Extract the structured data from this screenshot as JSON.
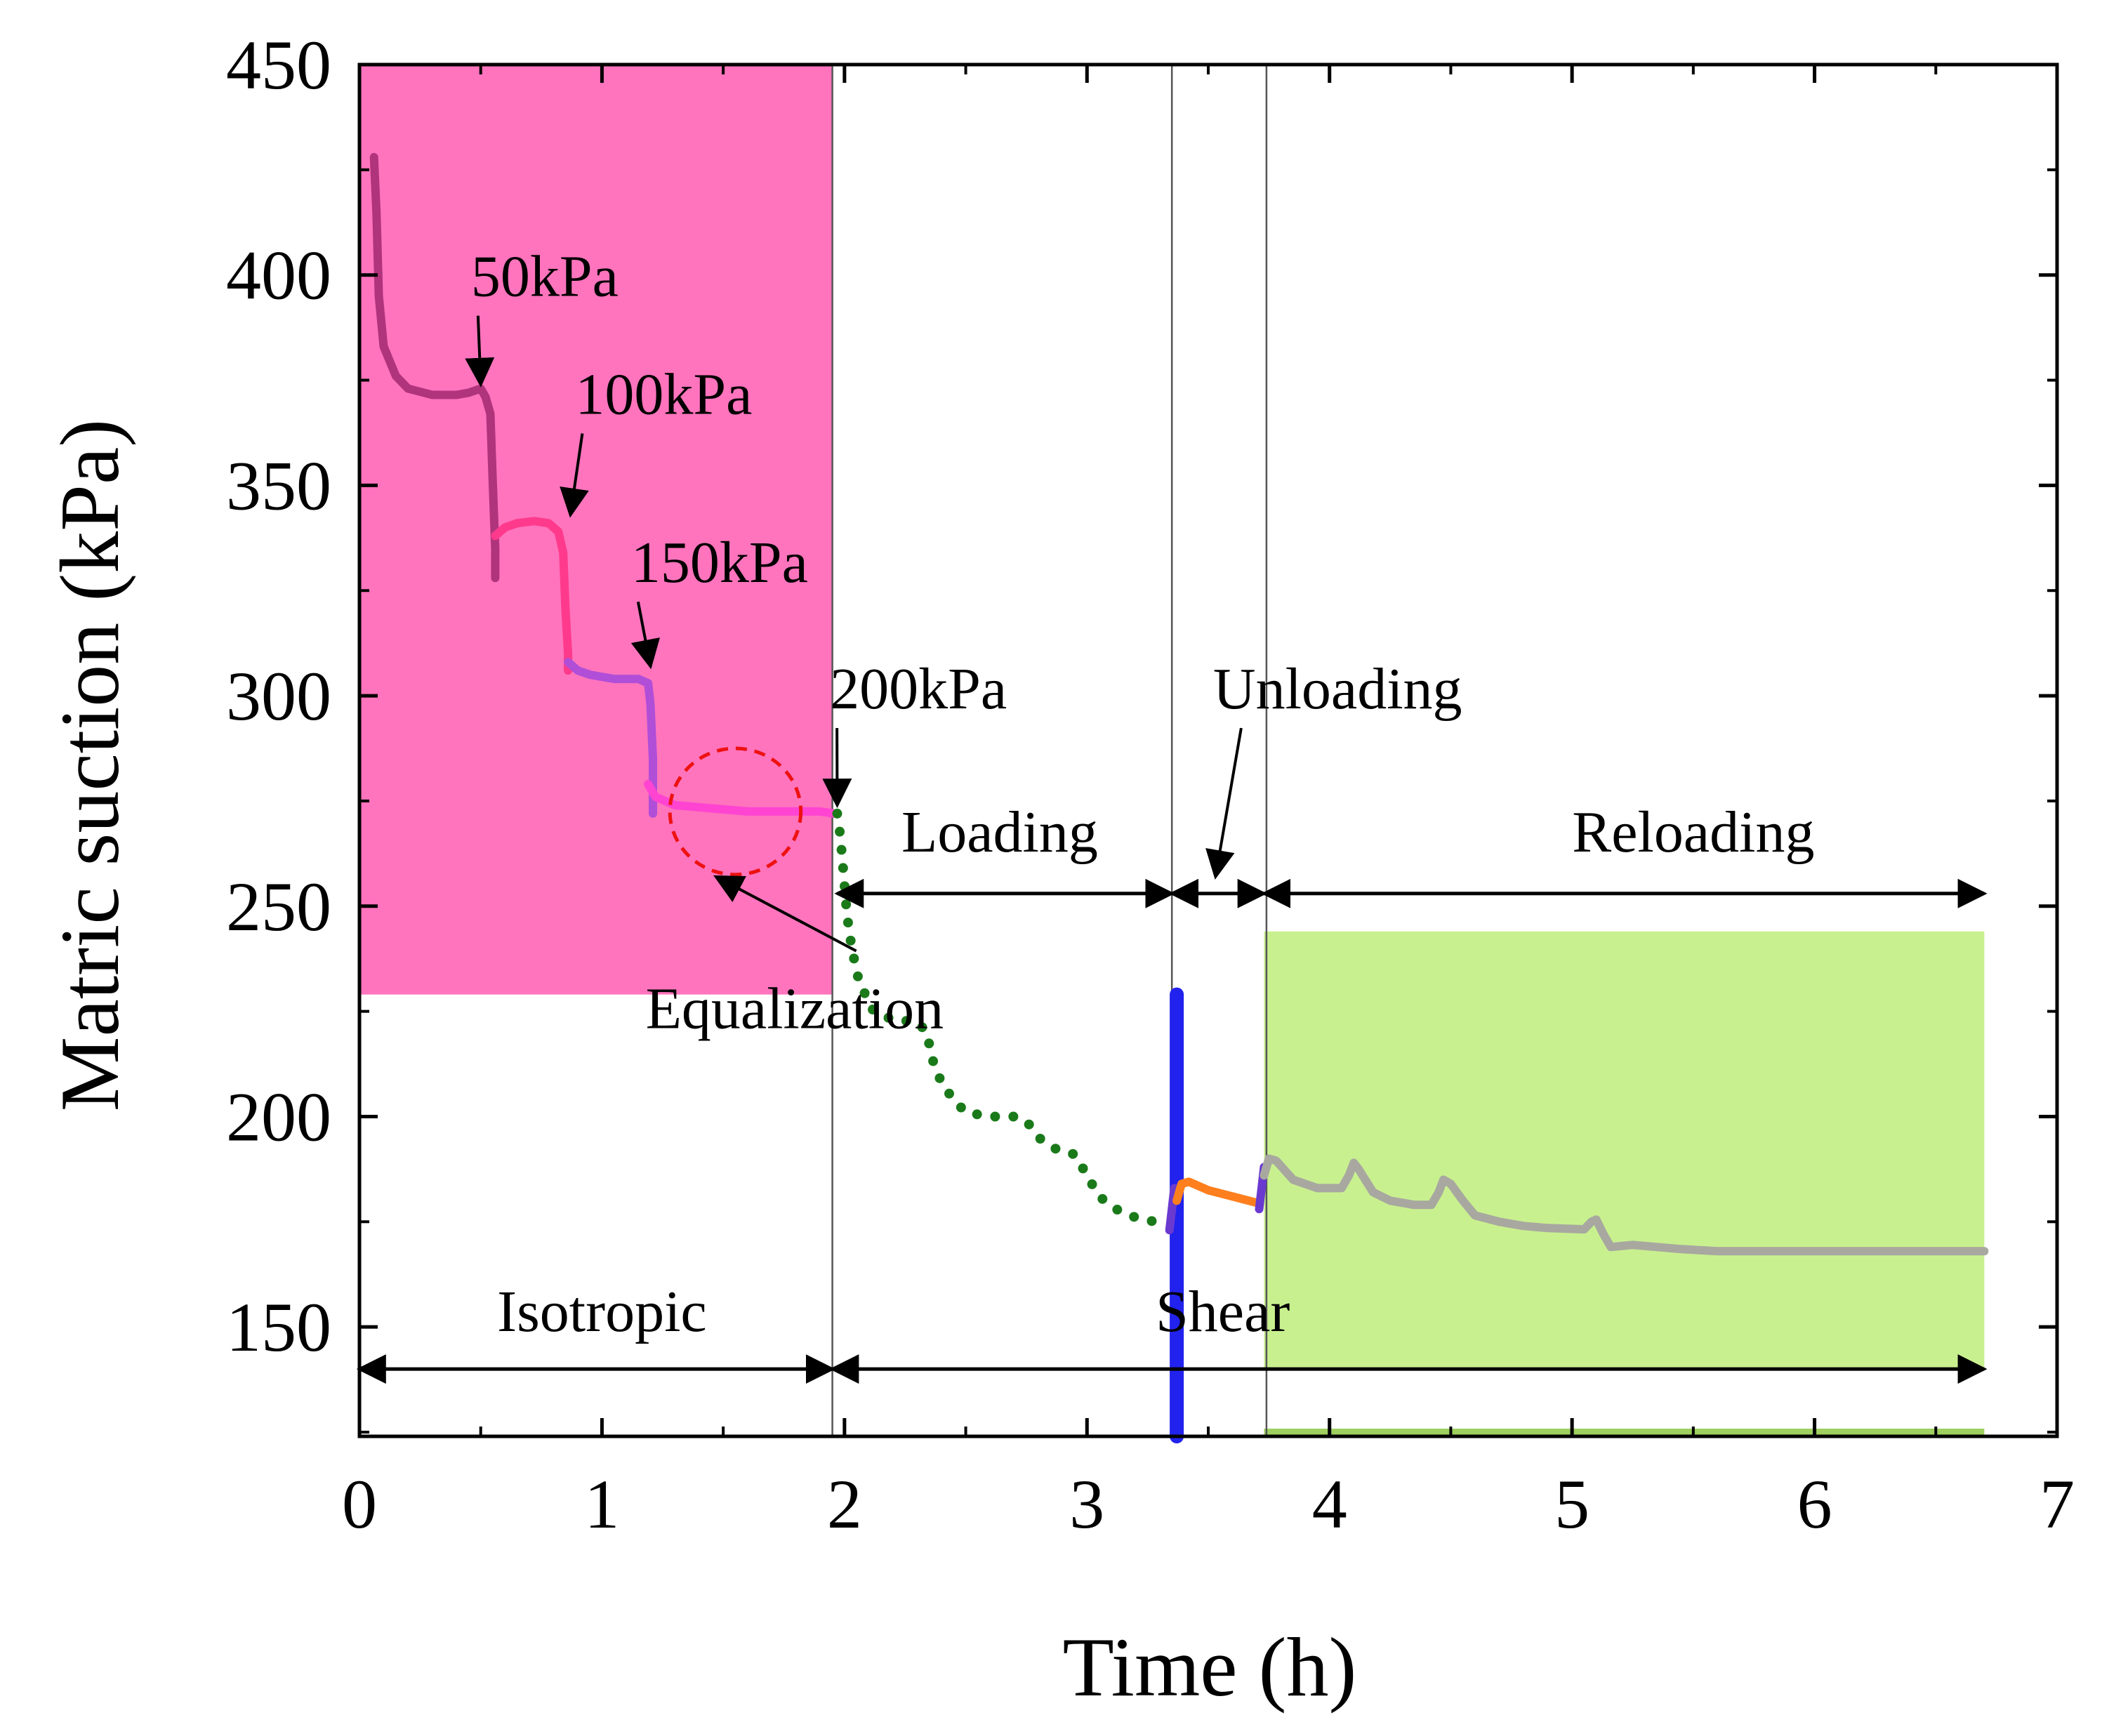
{
  "chart_data": {
    "type": "line",
    "xlabel": "Time (h)",
    "ylabel": "Matric suction (kPa)",
    "xlim": [
      0,
      7
    ],
    "ylim": [
      124,
      450
    ],
    "x_ticks": [
      0,
      1,
      2,
      3,
      4,
      5,
      6,
      7
    ],
    "y_ticks": [
      150,
      200,
      250,
      300,
      350,
      400,
      450
    ],
    "regions": [
      {
        "name": "isotropic-region",
        "x": [
          0.0,
          1.95
        ],
        "y": [
          229,
          450
        ],
        "color": "#ff74bd"
      },
      {
        "name": "reloading-region",
        "x": [
          3.73,
          6.7
        ],
        "y": [
          140,
          244
        ],
        "color": "#c9f08f"
      }
    ],
    "series": [
      {
        "name": "Confining 50kPa",
        "color": "#b0347c",
        "dashed": false,
        "points": [
          [
            0.06,
            428
          ],
          [
            0.07,
            415
          ],
          [
            0.08,
            395
          ],
          [
            0.1,
            383
          ],
          [
            0.15,
            376
          ],
          [
            0.2,
            373
          ],
          [
            0.3,
            371.5
          ],
          [
            0.4,
            371.5
          ],
          [
            0.45,
            372
          ],
          [
            0.5,
            373
          ],
          [
            0.52,
            371
          ],
          [
            0.54,
            367
          ],
          [
            0.55,
            350
          ],
          [
            0.56,
            335
          ],
          [
            0.56,
            328
          ]
        ]
      },
      {
        "name": "Confining 100kPa",
        "color": "#ff3a8c",
        "dashed": false,
        "points": [
          [
            0.56,
            338
          ],
          [
            0.6,
            340
          ],
          [
            0.65,
            341
          ],
          [
            0.72,
            341.5
          ],
          [
            0.78,
            341
          ],
          [
            0.82,
            339
          ],
          [
            0.84,
            334
          ],
          [
            0.85,
            320
          ],
          [
            0.86,
            310
          ],
          [
            0.86,
            306
          ]
        ]
      },
      {
        "name": "Confining 150kPa",
        "color": "#b04ed8",
        "dashed": false,
        "points": [
          [
            0.86,
            308
          ],
          [
            0.9,
            306
          ],
          [
            0.95,
            305
          ],
          [
            1.05,
            304
          ],
          [
            1.15,
            304
          ],
          [
            1.19,
            303
          ],
          [
            1.2,
            298
          ],
          [
            1.21,
            285
          ],
          [
            1.21,
            272
          ]
        ]
      },
      {
        "name": "Confining 200kPa",
        "color": "#ff44d2",
        "dashed": false,
        "points": [
          [
            1.19,
            279
          ],
          [
            1.22,
            276
          ],
          [
            1.26,
            275
          ],
          [
            1.3,
            274
          ],
          [
            1.4,
            273.5
          ],
          [
            1.5,
            273
          ],
          [
            1.6,
            272.5
          ],
          [
            1.7,
            272.5
          ],
          [
            1.8,
            272.5
          ],
          [
            1.9,
            272.5
          ],
          [
            1.96,
            272
          ]
        ]
      },
      {
        "name": "Loading",
        "color": "#1a7a1a",
        "dashed": true,
        "points": [
          [
            1.97,
            272
          ],
          [
            1.98,
            268
          ],
          [
            1.99,
            262
          ],
          [
            2.0,
            255
          ],
          [
            2.01,
            248
          ],
          [
            2.03,
            240
          ],
          [
            2.06,
            232
          ],
          [
            2.12,
            225
          ],
          [
            2.2,
            223
          ],
          [
            2.3,
            222.5
          ],
          [
            2.34,
            220
          ],
          [
            2.36,
            214
          ],
          [
            2.4,
            208
          ],
          [
            2.45,
            204
          ],
          [
            2.5,
            201
          ],
          [
            2.6,
            200
          ],
          [
            2.7,
            200
          ],
          [
            2.75,
            199
          ],
          [
            2.8,
            195
          ],
          [
            2.88,
            192
          ],
          [
            2.95,
            191
          ],
          [
            3.0,
            186
          ],
          [
            3.05,
            181
          ],
          [
            3.12,
            178
          ],
          [
            3.2,
            176
          ],
          [
            3.28,
            175
          ],
          [
            3.33,
            175
          ]
        ]
      },
      {
        "name": "Unloading blue",
        "color": "#2222ee",
        "dashed": false,
        "points": [
          [
            3.37,
            124
          ],
          [
            3.37,
            229
          ]
        ]
      },
      {
        "name": "Unloading small",
        "color": "#6a3ad0",
        "dashed": false,
        "points": [
          [
            3.34,
            173
          ],
          [
            3.35,
            178
          ],
          [
            3.36,
            183
          ]
        ]
      },
      {
        "name": "Unloading orange",
        "color": "#ff7f1e",
        "dashed": false,
        "points": [
          [
            3.37,
            180
          ],
          [
            3.39,
            184
          ],
          [
            3.42,
            184.5
          ],
          [
            3.5,
            182.5
          ],
          [
            3.6,
            181
          ],
          [
            3.7,
            179.5
          ]
        ]
      },
      {
        "name": "Reloading purple",
        "color": "#6a3ad0",
        "dashed": false,
        "points": [
          [
            3.71,
            178
          ],
          [
            3.72,
            183
          ],
          [
            3.73,
            188
          ]
        ]
      },
      {
        "name": "Reloading",
        "color": "#a8a8a0",
        "dashed": false,
        "points": [
          [
            3.73,
            186
          ],
          [
            3.75,
            190
          ],
          [
            3.78,
            189.5
          ],
          [
            3.85,
            185
          ],
          [
            3.95,
            183
          ],
          [
            4.05,
            183
          ],
          [
            4.08,
            186
          ],
          [
            4.1,
            189
          ],
          [
            4.12,
            187.5
          ],
          [
            4.18,
            182
          ],
          [
            4.25,
            180
          ],
          [
            4.35,
            179
          ],
          [
            4.42,
            179
          ],
          [
            4.45,
            182
          ],
          [
            4.47,
            185
          ],
          [
            4.5,
            184
          ],
          [
            4.55,
            180
          ],
          [
            4.6,
            176.5
          ],
          [
            4.7,
            175
          ],
          [
            4.8,
            174
          ],
          [
            4.9,
            173.5
          ],
          [
            5.05,
            173.2
          ],
          [
            5.08,
            175
          ],
          [
            5.1,
            175.5
          ],
          [
            5.13,
            172
          ],
          [
            5.16,
            169
          ],
          [
            5.25,
            169.5
          ],
          [
            5.35,
            169
          ],
          [
            5.45,
            168.5
          ],
          [
            5.6,
            168
          ],
          [
            5.8,
            168
          ],
          [
            6.2,
            168
          ],
          [
            6.5,
            168
          ],
          [
            6.7,
            168
          ]
        ]
      }
    ],
    "annotations": [
      {
        "text": "50kPa",
        "tx": 0.46,
        "ty": 395,
        "ax": 0.5,
        "ay": 374
      },
      {
        "text": "100kPa",
        "tx": 0.89,
        "ty": 367,
        "ax": 0.87,
        "ay": 343
      },
      {
        "text": "150kPa",
        "tx": 1.12,
        "ty": 327,
        "ax": 1.2,
        "ay": 307
      },
      {
        "text": "200kPa",
        "tx": 1.94,
        "ty": 297,
        "ax": 1.97,
        "ay": 274
      },
      {
        "text": "Unloading",
        "tx": 3.52,
        "ty": 297,
        "ax": 3.53,
        "ay": 257
      },
      {
        "text": "Equalization",
        "tx": 1.18,
        "ty": 221,
        "ax": 1.47,
        "ay": 257
      }
    ],
    "phase_labels": [
      {
        "text": "Loading",
        "x": 2.64,
        "y": 263
      },
      {
        "text": "Reloading",
        "x": 5.5,
        "y": 263
      },
      {
        "text": "Isotropic",
        "x": 1.0,
        "y": 149
      },
      {
        "text": "Shear",
        "x": 3.56,
        "y": 149
      }
    ],
    "spans": [
      {
        "x1": 1.97,
        "x2": 3.35,
        "y": 253
      },
      {
        "x1": 3.35,
        "x2": 3.73,
        "y": 253
      },
      {
        "x1": 3.73,
        "x2": 6.7,
        "y": 253
      },
      {
        "x1": 0.0,
        "x2": 1.95,
        "y": 140
      },
      {
        "x1": 1.95,
        "x2": 6.7,
        "y": 140
      }
    ],
    "separators": [
      1.95,
      3.35,
      3.74
    ],
    "equalization_circle": {
      "cx": 1.55,
      "cy": 272.5,
      "rx": 0.27,
      "ry": 15
    }
  }
}
